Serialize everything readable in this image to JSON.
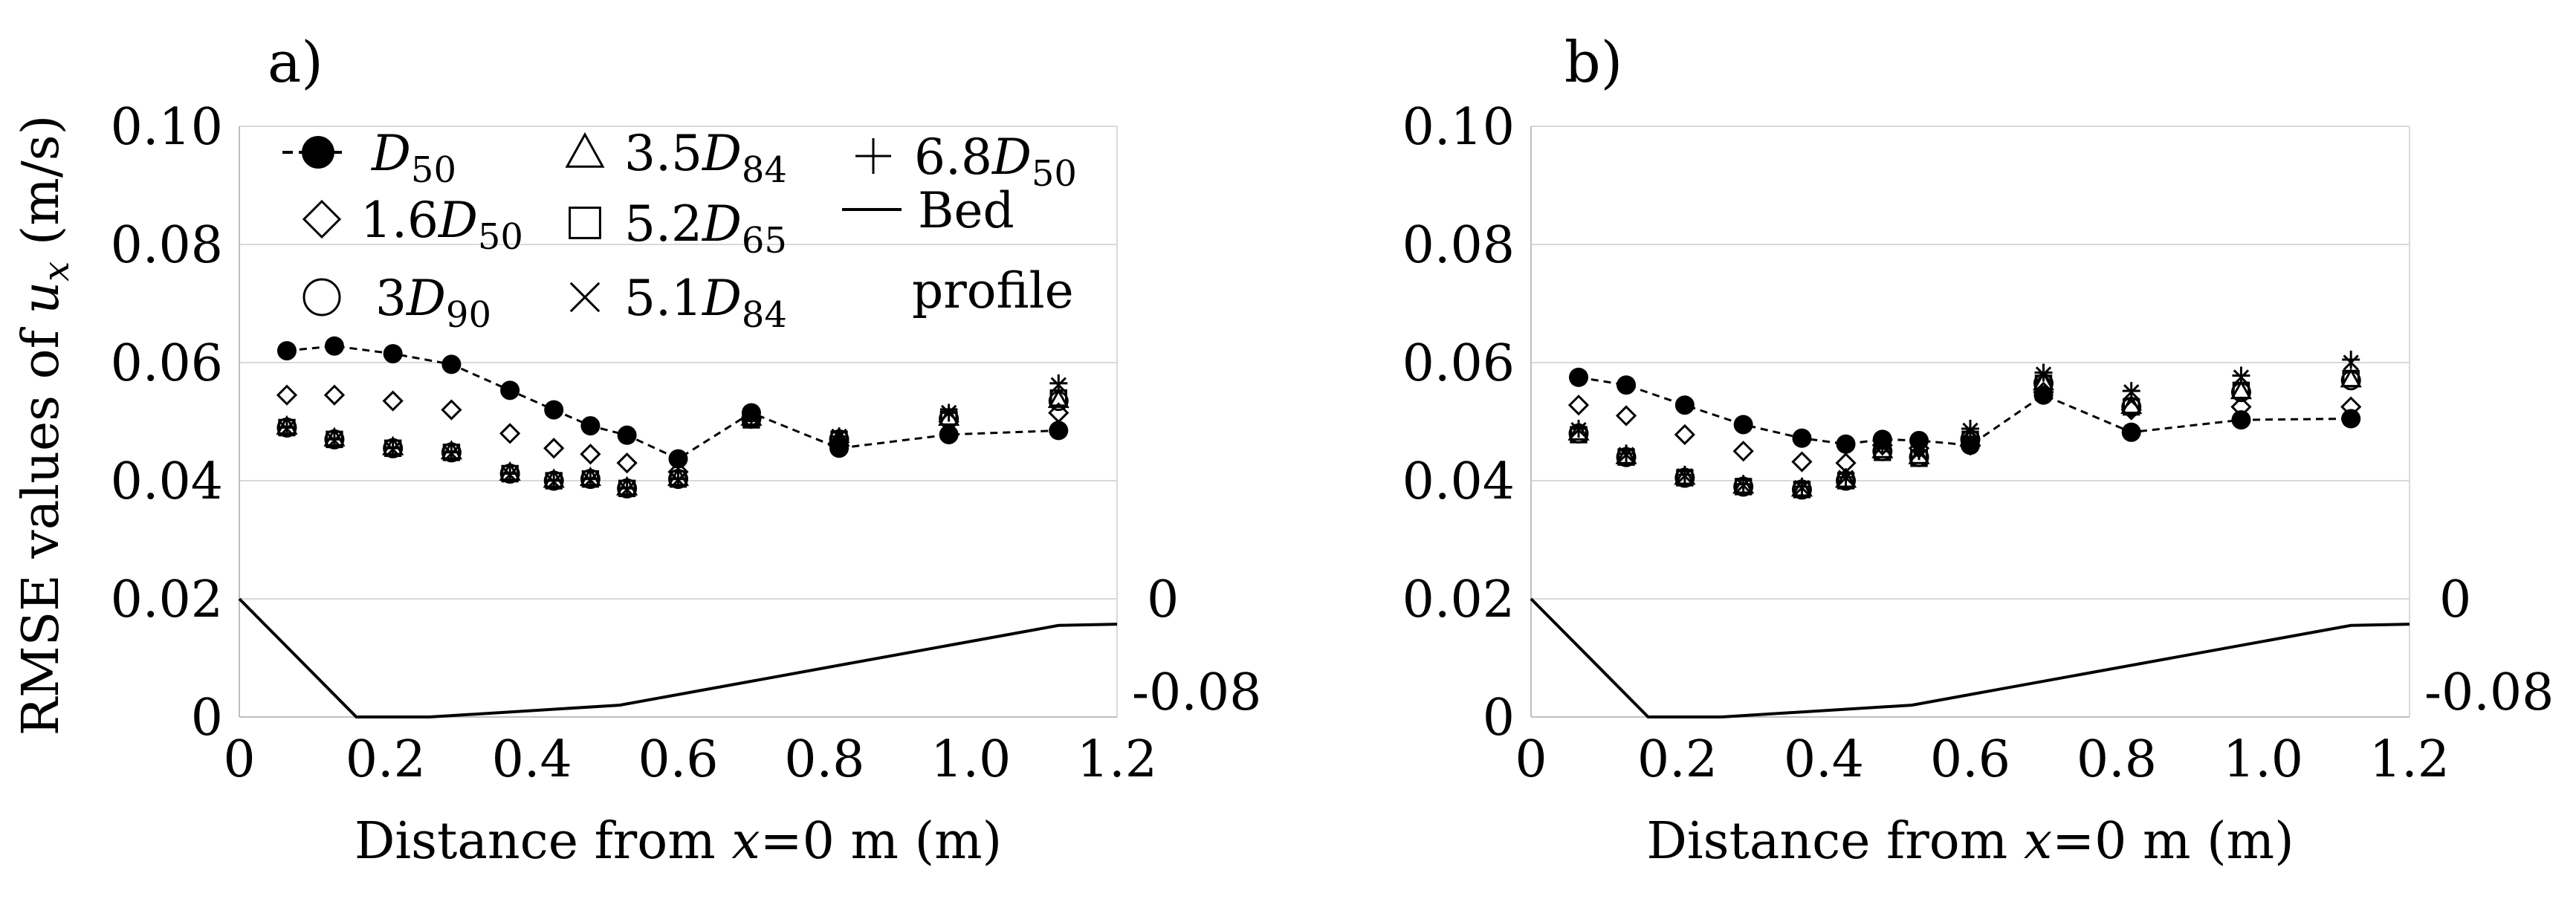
{
  "chart_data": [
    {
      "type": "scatter",
      "panel_label": "a)",
      "xlabel": "Distance from x=0 m (m)",
      "ylabel": "RMSE values of u_x (m/s)",
      "xlim": [
        0,
        1.2
      ],
      "ylim": [
        0,
        0.1
      ],
      "xticks": [
        "0",
        "0.2",
        "0.4",
        "0.6",
        "0.8",
        "1.0",
        "1.2"
      ],
      "yticks": [
        "0",
        "0.02",
        "0.04",
        "0.06",
        "0.08",
        "0.10"
      ],
      "secondary_y": {
        "ticks": [
          "0",
          "-0.08"
        ]
      },
      "legend": {
        "entries": [
          {
            "name": "D50",
            "text": "D",
            "sub": "50"
          },
          {
            "name": "3.5D84",
            "text": "3.5D",
            "sub": "84"
          },
          {
            "name": "6.8D50",
            "text": "6.8D",
            "sub": "50"
          },
          {
            "name": "1.6D50",
            "text": "1.6D",
            "sub": "50"
          },
          {
            "name": "5.2D65",
            "text": "5.2D",
            "sub": "65"
          },
          {
            "name": "Bed profile",
            "text": "Bed",
            "text2": "profile"
          },
          {
            "name": "3D90",
            "text": "3D",
            "sub": "90"
          },
          {
            "name": "5.1D84",
            "text": "5.1D",
            "sub": "84"
          }
        ]
      },
      "series": [
        {
          "name": "D50",
          "marker": "filled-circle",
          "dashed_line": true,
          "x": [
            0.065,
            0.13,
            0.21,
            0.29,
            0.37,
            0.43,
            0.48,
            0.53,
            0.6,
            0.7,
            0.82,
            0.97,
            1.12
          ],
          "y": [
            0.062,
            0.0628,
            0.0615,
            0.0597,
            0.0553,
            0.052,
            0.0493,
            0.0477,
            0.0437,
            0.0515,
            0.0455,
            0.0478,
            0.0485
          ]
        },
        {
          "name": "1.6D50",
          "marker": "diamond",
          "x": [
            0.065,
            0.13,
            0.21,
            0.29,
            0.37,
            0.43,
            0.48,
            0.53,
            0.6,
            0.7,
            0.82,
            0.97,
            1.12
          ],
          "y": [
            0.0545,
            0.0545,
            0.0535,
            0.052,
            0.048,
            0.0455,
            0.0445,
            0.043,
            0.0415,
            0.0505,
            0.0465,
            0.05,
            0.0515
          ]
        },
        {
          "name": "3D90",
          "marker": "open-circle",
          "x": [
            0.065,
            0.13,
            0.21,
            0.29,
            0.37,
            0.43,
            0.48,
            0.53,
            0.6,
            0.7,
            0.82,
            0.97,
            1.12
          ],
          "y": [
            0.049,
            0.047,
            0.0455,
            0.0448,
            0.0412,
            0.04,
            0.0403,
            0.0387,
            0.0403,
            0.0505,
            0.047,
            0.0505,
            0.0535
          ]
        },
        {
          "name": "3.5D84",
          "marker": "triangle",
          "x": [
            0.065,
            0.13,
            0.21,
            0.29,
            0.37,
            0.43,
            0.48,
            0.53,
            0.6,
            0.7,
            0.82,
            0.97,
            1.12
          ],
          "y": [
            0.0492,
            0.0472,
            0.0457,
            0.045,
            0.0414,
            0.0402,
            0.0405,
            0.0389,
            0.0405,
            0.0507,
            0.0472,
            0.0507,
            0.0537
          ]
        },
        {
          "name": "5.2D65",
          "marker": "square",
          "x": [
            0.065,
            0.13,
            0.21,
            0.29,
            0.37,
            0.43,
            0.48,
            0.53,
            0.6,
            0.7,
            0.82,
            0.97,
            1.12
          ],
          "y": [
            0.049,
            0.047,
            0.0455,
            0.0448,
            0.0412,
            0.04,
            0.0403,
            0.0387,
            0.0403,
            0.0503,
            0.047,
            0.0508,
            0.054
          ]
        },
        {
          "name": "5.1D84",
          "marker": "x",
          "x": [
            0.065,
            0.13,
            0.21,
            0.29,
            0.37,
            0.43,
            0.48,
            0.53,
            0.6,
            0.7,
            0.82,
            0.97,
            1.12
          ],
          "y": [
            0.0488,
            0.0468,
            0.0453,
            0.0446,
            0.041,
            0.0398,
            0.0401,
            0.0385,
            0.0401,
            0.0508,
            0.0475,
            0.0515,
            0.0562
          ]
        },
        {
          "name": "6.8D50",
          "marker": "plus",
          "x": [
            0.065,
            0.13,
            0.21,
            0.29,
            0.37,
            0.43,
            0.48,
            0.53,
            0.6,
            0.7,
            0.82,
            0.97,
            1.12
          ],
          "y": [
            0.049,
            0.047,
            0.0455,
            0.0448,
            0.0412,
            0.04,
            0.0403,
            0.0387,
            0.0403,
            0.0505,
            0.0475,
            0.0515,
            0.0565
          ]
        },
        {
          "name": "Bed profile",
          "marker": "line",
          "x": [
            0,
            0.16,
            0.26,
            0.52,
            1.12,
            1.2
          ],
          "y": [
            0.02,
            0.0,
            0.0,
            0.002,
            0.0155,
            0.0157
          ]
        }
      ]
    },
    {
      "type": "scatter",
      "panel_label": "b)",
      "xlabel": "Distance from x=0 m (m)",
      "xlim": [
        0,
        1.2
      ],
      "ylim": [
        0,
        0.1
      ],
      "xticks": [
        "0",
        "0.2",
        "0.4",
        "0.6",
        "0.8",
        "1.0",
        "1.2"
      ],
      "yticks": [
        "0",
        "0.02",
        "0.04",
        "0.06",
        "0.08",
        "0.10"
      ],
      "secondary_y": {
        "ticks": [
          "0",
          "-0.08"
        ]
      },
      "series": [
        {
          "name": "D50",
          "marker": "filled-circle",
          "dashed_line": true,
          "x": [
            0.065,
            0.13,
            0.21,
            0.29,
            0.37,
            0.43,
            0.48,
            0.53,
            0.6,
            0.7,
            0.82,
            0.97,
            1.12
          ],
          "y": [
            0.0575,
            0.0562,
            0.0528,
            0.0495,
            0.0472,
            0.0462,
            0.047,
            0.0468,
            0.046,
            0.0545,
            0.0482,
            0.0503,
            0.0505
          ]
        },
        {
          "name": "1.6D50",
          "marker": "diamond",
          "x": [
            0.065,
            0.13,
            0.21,
            0.29,
            0.37,
            0.43,
            0.48,
            0.53,
            0.6,
            0.7,
            0.82,
            0.97,
            1.12
          ],
          "y": [
            0.0528,
            0.051,
            0.0478,
            0.045,
            0.0432,
            0.043,
            0.046,
            0.0455,
            0.046,
            0.055,
            0.052,
            0.0525,
            0.0525
          ]
        },
        {
          "name": "3D90",
          "marker": "open-circle",
          "x": [
            0.065,
            0.13,
            0.21,
            0.29,
            0.37,
            0.43,
            0.48,
            0.53,
            0.6,
            0.7,
            0.82,
            0.97,
            1.12
          ],
          "y": [
            0.048,
            0.044,
            0.0405,
            0.039,
            0.0385,
            0.04,
            0.045,
            0.044,
            0.047,
            0.0565,
            0.0525,
            0.055,
            0.057
          ]
        },
        {
          "name": "3.5D84",
          "marker": "triangle",
          "x": [
            0.065,
            0.13,
            0.21,
            0.29,
            0.37,
            0.43,
            0.48,
            0.53,
            0.6,
            0.7,
            0.82,
            0.97,
            1.12
          ],
          "y": [
            0.0482,
            0.0442,
            0.0407,
            0.0392,
            0.0387,
            0.0402,
            0.0452,
            0.0442,
            0.0472,
            0.0567,
            0.0527,
            0.0552,
            0.0572
          ]
        },
        {
          "name": "5.2D65",
          "marker": "square",
          "x": [
            0.065,
            0.13,
            0.21,
            0.29,
            0.37,
            0.43,
            0.48,
            0.53,
            0.6,
            0.7,
            0.82,
            0.97,
            1.12
          ],
          "y": [
            0.0478,
            0.044,
            0.0405,
            0.039,
            0.0385,
            0.04,
            0.0448,
            0.0438,
            0.047,
            0.0565,
            0.0525,
            0.0553,
            0.0573
          ]
        },
        {
          "name": "5.1D84",
          "marker": "x",
          "x": [
            0.065,
            0.13,
            0.21,
            0.29,
            0.37,
            0.43,
            0.48,
            0.53,
            0.6,
            0.7,
            0.82,
            0.97,
            1.12
          ],
          "y": [
            0.0486,
            0.0444,
            0.0408,
            0.0392,
            0.0388,
            0.0405,
            0.0458,
            0.0448,
            0.0485,
            0.058,
            0.055,
            0.0575,
            0.06
          ]
        },
        {
          "name": "6.8D50",
          "marker": "plus",
          "x": [
            0.065,
            0.13,
            0.21,
            0.29,
            0.37,
            0.43,
            0.48,
            0.53,
            0.6,
            0.7,
            0.82,
            0.97,
            1.12
          ],
          "y": [
            0.0488,
            0.0446,
            0.041,
            0.0394,
            0.039,
            0.0406,
            0.046,
            0.045,
            0.0488,
            0.0583,
            0.0552,
            0.0578,
            0.0605
          ]
        },
        {
          "name": "Bed profile",
          "marker": "line",
          "x": [
            0,
            0.16,
            0.26,
            0.52,
            1.12,
            1.2
          ],
          "y": [
            0.02,
            0.0,
            0.0,
            0.002,
            0.0155,
            0.0157
          ]
        }
      ]
    }
  ]
}
